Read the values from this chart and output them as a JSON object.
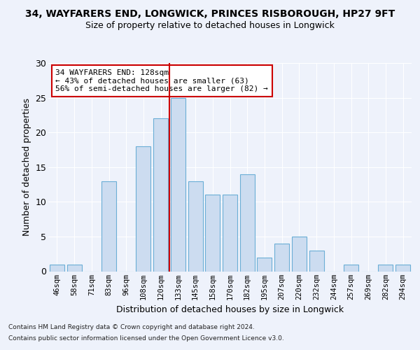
{
  "title1": "34, WAYFARERS END, LONGWICK, PRINCES RISBOROUGH, HP27 9FT",
  "title2": "Size of property relative to detached houses in Longwick",
  "xlabel": "Distribution of detached houses by size in Longwick",
  "ylabel": "Number of detached properties",
  "categories": [
    "46sqm",
    "58sqm",
    "71sqm",
    "83sqm",
    "96sqm",
    "108sqm",
    "120sqm",
    "133sqm",
    "145sqm",
    "158sqm",
    "170sqm",
    "182sqm",
    "195sqm",
    "207sqm",
    "220sqm",
    "232sqm",
    "244sqm",
    "257sqm",
    "269sqm",
    "282sqm",
    "294sqm"
  ],
  "values": [
    1,
    1,
    0,
    13,
    0,
    18,
    22,
    25,
    13,
    11,
    11,
    14,
    2,
    4,
    5,
    3,
    0,
    1,
    0,
    1,
    1
  ],
  "bar_color": "#ccdcf0",
  "bar_edge_color": "#6baed6",
  "vline_color": "#cc0000",
  "vline_x_index": 6.5,
  "annotation_text": "34 WAYFARERS END: 128sqm\n← 43% of detached houses are smaller (63)\n56% of semi-detached houses are larger (82) →",
  "annotation_box_color": "#ffffff",
  "annotation_box_edge": "#cc0000",
  "ylim": [
    0,
    30
  ],
  "yticks": [
    0,
    5,
    10,
    15,
    20,
    25,
    30
  ],
  "footer1": "Contains HM Land Registry data © Crown copyright and database right 2024.",
  "footer2": "Contains public sector information licensed under the Open Government Licence v3.0.",
  "bg_color": "#eef2fb",
  "grid_color": "#ffffff"
}
